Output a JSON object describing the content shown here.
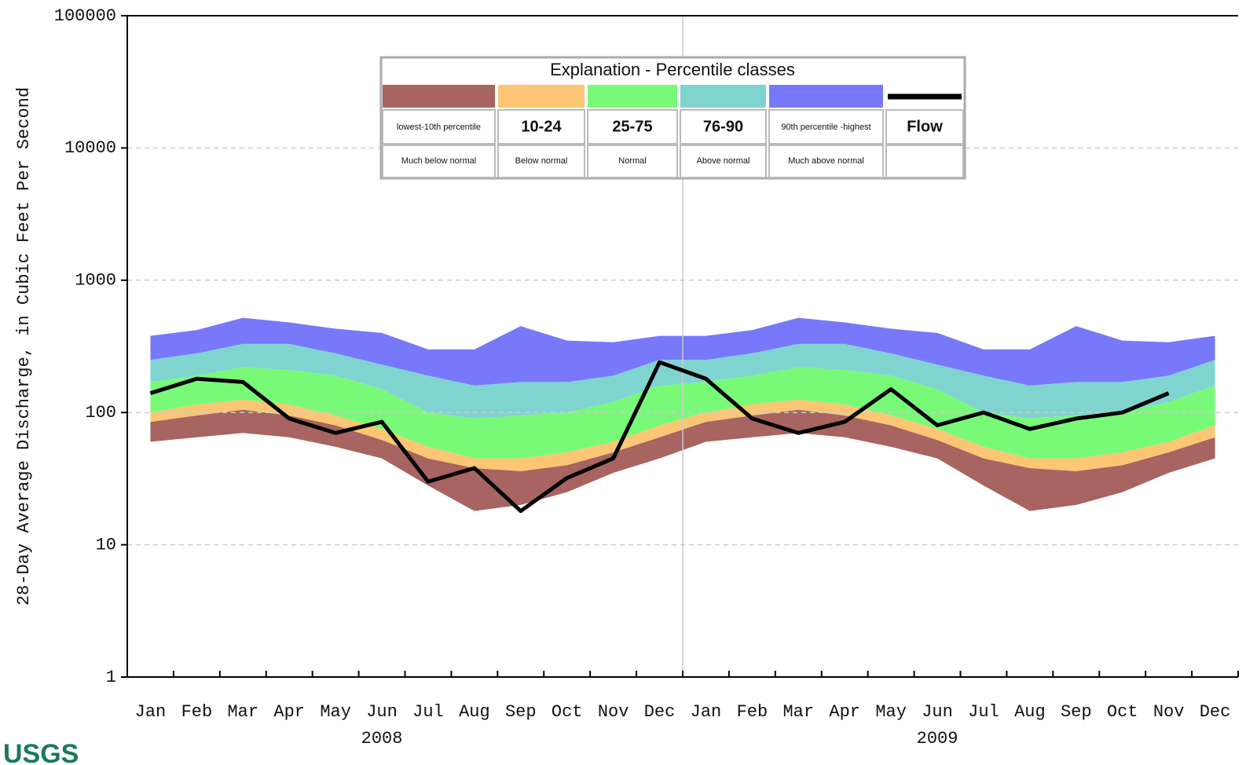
{
  "chart_data": {
    "type": "percentile-band",
    "y_label": "28-Day Average Discharge, in Cubic Feet Per Second",
    "categories": [
      "Jan",
      "Feb",
      "Mar",
      "Apr",
      "May",
      "Jun",
      "Jul",
      "Aug",
      "Sep",
      "Oct",
      "Nov",
      "Dec",
      "Jan",
      "Feb",
      "Mar",
      "Apr",
      "May",
      "Jun",
      "Jul",
      "Aug",
      "Sep",
      "Oct",
      "Nov",
      "Dec"
    ],
    "year_labels": [
      "2008",
      "2009"
    ],
    "log_y": true,
    "ylim": [
      1,
      100000
    ],
    "yticks": [
      1,
      10,
      100,
      1000,
      10000,
      100000
    ],
    "grid": true,
    "bounds": [
      [
        60,
        65,
        70,
        65,
        55,
        45,
        28,
        18,
        20,
        25,
        35,
        45,
        60,
        65,
        70,
        65,
        55,
        45,
        28,
        18,
        20,
        25,
        35,
        45
      ],
      [
        85,
        95,
        105,
        95,
        80,
        62,
        45,
        38,
        36,
        40,
        50,
        65,
        85,
        95,
        105,
        95,
        80,
        62,
        45,
        38,
        36,
        40,
        50,
        65
      ],
      [
        100,
        115,
        125,
        115,
        95,
        75,
        55,
        45,
        45,
        50,
        60,
        80,
        100,
        115,
        125,
        115,
        95,
        75,
        55,
        45,
        45,
        50,
        60,
        80
      ],
      [
        170,
        190,
        220,
        210,
        190,
        150,
        100,
        90,
        95,
        100,
        120,
        160,
        170,
        190,
        220,
        210,
        190,
        150,
        100,
        90,
        95,
        100,
        120,
        160
      ],
      [
        250,
        280,
        330,
        330,
        280,
        230,
        190,
        160,
        170,
        170,
        190,
        250,
        250,
        280,
        330,
        330,
        280,
        230,
        190,
        160,
        170,
        170,
        190,
        250
      ],
      [
        380,
        420,
        520,
        480,
        430,
        400,
        300,
        300,
        450,
        350,
        340,
        380,
        380,
        420,
        520,
        480,
        430,
        400,
        300,
        300,
        450,
        350,
        340,
        380
      ]
    ],
    "flow": {
      "color": "#000000",
      "values": [
        140,
        180,
        170,
        90,
        70,
        85,
        30,
        38,
        18,
        32,
        45,
        240,
        180,
        90,
        70,
        85,
        150,
        80,
        100,
        75,
        90,
        100,
        140,
        null
      ]
    },
    "legend": {
      "title": "Explanation - Percentile classes",
      "entries": [
        {
          "color": "#a86460",
          "label": "lowest-10th percentile",
          "description": "Much below normal"
        },
        {
          "color": "#fcc674",
          "label": "10-24",
          "description": "Below normal"
        },
        {
          "color": "#78fa78",
          "label": "25-75",
          "description": "Normal"
        },
        {
          "color": "#80d4d0",
          "label": "76-90",
          "description": "Above normal"
        },
        {
          "color": "#7878fa",
          "label": "90th percentile -highest",
          "description": "Much above normal"
        },
        {
          "color": "#000000",
          "label": "Flow"
        }
      ]
    },
    "logo": "USGS"
  }
}
